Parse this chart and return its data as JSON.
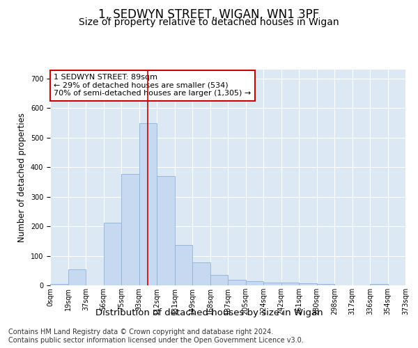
{
  "title": "1, SEDWYN STREET, WIGAN, WN1 3PF",
  "subtitle": "Size of property relative to detached houses in Wigan",
  "xlabel": "Distribution of detached houses by size in Wigan",
  "ylabel": "Number of detached properties",
  "bar_values": [
    5,
    55,
    0,
    213,
    377,
    548,
    370,
    137,
    78,
    35,
    19,
    14,
    9,
    9,
    6,
    4,
    0,
    0,
    4,
    0
  ],
  "x_labels": [
    "0sqm",
    "19sqm",
    "37sqm",
    "56sqm",
    "75sqm",
    "93sqm",
    "112sqm",
    "131sqm",
    "149sqm",
    "168sqm",
    "187sqm",
    "205sqm",
    "224sqm",
    "242sqm",
    "261sqm",
    "280sqm",
    "298sqm",
    "317sqm",
    "336sqm",
    "354sqm",
    "373sqm"
  ],
  "bar_color": "#c6d9f0",
  "bar_edge_color": "#8ab4d8",
  "bar_width": 1.0,
  "vline_x": 5,
  "vline_color": "#cc0000",
  "annotation_text": "1 SEDWYN STREET: 89sqm\n← 29% of detached houses are smaller (534)\n70% of semi-detached houses are larger (1,305) →",
  "annotation_box_color": "#ffffff",
  "annotation_box_edge": "#cc0000",
  "ylim": [
    0,
    730
  ],
  "yticks": [
    0,
    100,
    200,
    300,
    400,
    500,
    600,
    700
  ],
  "bg_color": "#dde8f5",
  "plot_bg_color": "#dde8f5",
  "grid_color": "#ffffff",
  "footer_line1": "Contains HM Land Registry data © Crown copyright and database right 2024.",
  "footer_line2": "Contains public sector information licensed under the Open Government Licence v3.0.",
  "title_fontsize": 12,
  "subtitle_fontsize": 10,
  "tick_fontsize": 7,
  "ylabel_fontsize": 8.5,
  "xlabel_fontsize": 9.5,
  "annotation_fontsize": 8,
  "footer_fontsize": 7
}
